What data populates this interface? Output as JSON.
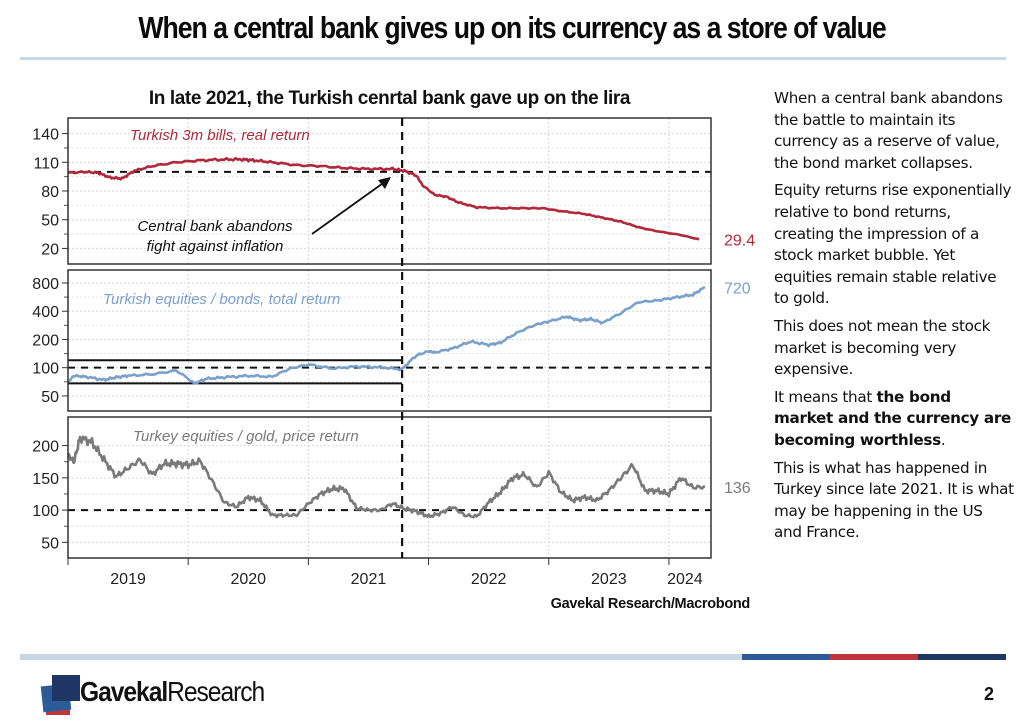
{
  "page": {
    "title": "When a central bank gives up on its currency as a store of value",
    "page_number": "2",
    "source": "Gavekal Research/Macrobond",
    "logo": {
      "bold_part": "Gavekal",
      "regular_part": "Research"
    },
    "footer_colors": {
      "light": "#c9d6e3",
      "blue": "#2b5c97",
      "red": "#c0353b",
      "navy": "#1f3564"
    }
  },
  "side_text": {
    "p1": "When a central bank abandons the battle to maintain its currency as a reserve of value, the bond market collapses.",
    "p2": "Equity returns rise exponentially relative to bond returns, creating the impression of a stock market bubble. Yet equities remain stable relative to gold.",
    "p3": "This does not mean the stock market is becoming very expensive.",
    "p4_prefix": "It means that ",
    "p4_bold": "the bond market and the currency are becoming worthless",
    "p4_suffix": ".",
    "p5": "This is what has happened in Turkey since late 2021. It is what may be happening in the US and France."
  },
  "chart_data": {
    "type": "line",
    "title": "In late 2021, the Turkish cenrtal bank gave up on the lira",
    "x_tick_labels": [
      "2019",
      "2020",
      "2021",
      "2022",
      "2023",
      "2024"
    ],
    "x_range": [
      2019.0,
      2024.35
    ],
    "event_line": {
      "x": 2021.78,
      "label": "Central bank abandons fight against inflation"
    },
    "annotation_lines": [
      "Central bank abandons",
      "fight against inflation"
    ],
    "panels": [
      {
        "name": "Turkish 3m bills, real return",
        "color": "#b0283a",
        "scale": "linear",
        "ylim": [
          10,
          150
        ],
        "yticks": [
          20,
          50,
          80,
          110,
          140
        ],
        "reference": 100,
        "end_label": "29.4",
        "x": [
          2019.0,
          2019.15,
          2019.25,
          2019.35,
          2019.45,
          2019.55,
          2019.7,
          2019.9,
          2020.1,
          2020.3,
          2020.45,
          2020.55,
          2020.7,
          2020.9,
          2021.1,
          2021.3,
          2021.5,
          2021.7,
          2021.8,
          2021.9,
          2021.95,
          2022.05,
          2022.15,
          2022.25,
          2022.4,
          2022.6,
          2022.8,
          2022.95,
          2023.1,
          2023.3,
          2023.45,
          2023.6,
          2023.75,
          2023.9,
          2024.1,
          2024.25
        ],
        "y": [
          99,
          100,
          99,
          94,
          93,
          101,
          106,
          110,
          112,
          113,
          113,
          112,
          110,
          107,
          106,
          104,
          103,
          103,
          101,
          96,
          86,
          76,
          74,
          68,
          63,
          62,
          62,
          62,
          59,
          56,
          52,
          48,
          42,
          38,
          34,
          29.4
        ]
      },
      {
        "name": "Turkish equities / bonds, total return",
        "color": "#7aa0cc",
        "scale": "log",
        "ylim": [
          40,
          950
        ],
        "yticks": [
          50,
          100,
          200,
          400,
          800
        ],
        "reference": 100,
        "bracket": {
          "upper": 120,
          "lower": 68
        },
        "end_label": "720",
        "x": [
          2019.0,
          2019.05,
          2019.15,
          2019.3,
          2019.4,
          2019.5,
          2019.7,
          2019.9,
          2020.05,
          2020.15,
          2020.3,
          2020.5,
          2020.7,
          2020.85,
          2021.0,
          2021.2,
          2021.4,
          2021.6,
          2021.78,
          2021.9,
          2022.0,
          2022.05,
          2022.2,
          2022.35,
          2022.5,
          2022.6,
          2022.75,
          2022.9,
          2023.0,
          2023.15,
          2023.25,
          2023.35,
          2023.45,
          2023.6,
          2023.75,
          2023.9,
          2024.05,
          2024.2,
          2024.3
        ],
        "y": [
          70,
          82,
          80,
          74,
          79,
          82,
          85,
          93,
          68,
          76,
          79,
          82,
          80,
          98,
          108,
          98,
          103,
          101,
          96,
          135,
          150,
          145,
          160,
          190,
          175,
          185,
          240,
          290,
          310,
          350,
          320,
          330,
          300,
          380,
          500,
          520,
          560,
          600,
          720
        ]
      },
      {
        "name": "Turkey equities / gold, price return",
        "color": "#7a7a7a",
        "scale": "linear",
        "ylim": [
          35,
          235
        ],
        "yticks": [
          50,
          100,
          150,
          200
        ],
        "reference": 100,
        "end_label": "136",
        "x": [
          2019.0,
          2019.05,
          2019.1,
          2019.2,
          2019.3,
          2019.4,
          2019.5,
          2019.6,
          2019.7,
          2019.8,
          2019.9,
          2020.0,
          2020.1,
          2020.2,
          2020.3,
          2020.4,
          2020.5,
          2020.6,
          2020.7,
          2020.8,
          2020.9,
          2021.0,
          2021.1,
          2021.2,
          2021.3,
          2021.4,
          2021.5,
          2021.6,
          2021.7,
          2021.8,
          2021.9,
          2022.0,
          2022.1,
          2022.2,
          2022.3,
          2022.4,
          2022.5,
          2022.6,
          2022.7,
          2022.8,
          2022.9,
          2023.0,
          2023.1,
          2023.2,
          2023.3,
          2023.4,
          2023.5,
          2023.6,
          2023.7,
          2023.8,
          2023.9,
          2024.0,
          2024.1,
          2024.2,
          2024.3
        ],
        "y": [
          185,
          175,
          212,
          205,
          178,
          152,
          165,
          178,
          155,
          172,
          172,
          170,
          176,
          145,
          112,
          105,
          120,
          115,
          92,
          92,
          92,
          110,
          125,
          133,
          133,
          103,
          100,
          100,
          110,
          102,
          98,
          90,
          95,
          105,
          92,
          90,
          112,
          128,
          150,
          155,
          135,
          158,
          128,
          115,
          120,
          115,
          130,
          150,
          170,
          130,
          130,
          125,
          150,
          135,
          136
        ]
      }
    ]
  }
}
